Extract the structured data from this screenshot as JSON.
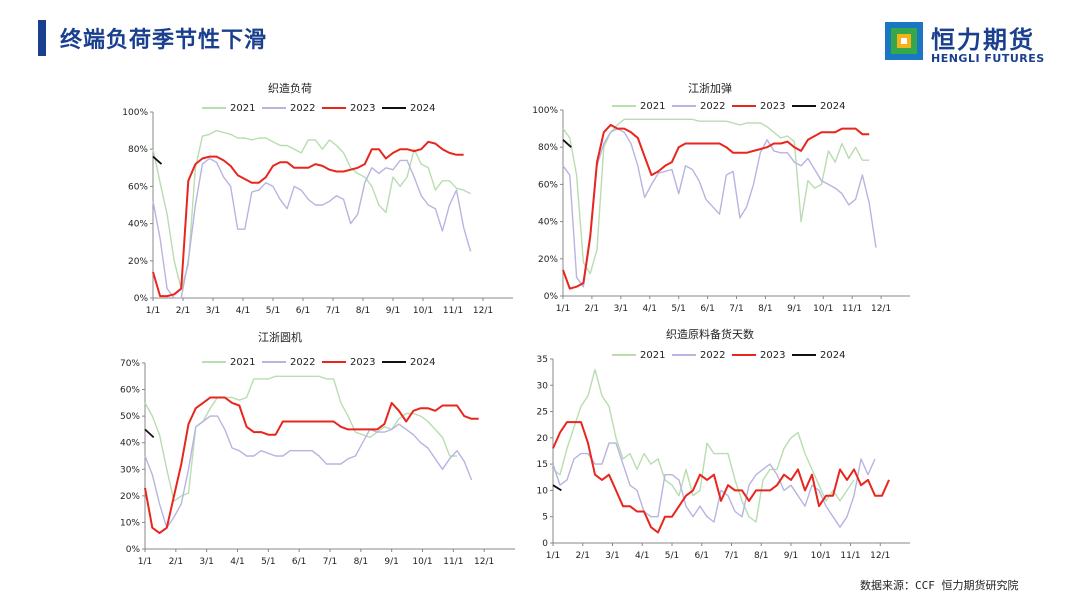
{
  "page": {
    "title": "终端负荷季节性下滑",
    "source": "数据来源：CCF  恒力期货研究院"
  },
  "logo": {
    "cn": "恒力期货",
    "en": "HENGLI FUTURES"
  },
  "colors": {
    "2021": "#b8ddb0",
    "2022": "#b8b4e0",
    "2023": "#e8261e",
    "2024": "#111111",
    "brand": "#1a3f8f"
  },
  "chart_data": [
    {
      "type": "line",
      "title": "织造负荷",
      "x_ticks": [
        "1/1",
        "2/1",
        "3/1",
        "4/1",
        "5/1",
        "6/1",
        "7/1",
        "8/1",
        "9/1",
        "10/1",
        "11/1",
        "12/1"
      ],
      "y_ticks": [
        "0%",
        "20%",
        "40%",
        "60%",
        "80%",
        "100%"
      ],
      "ylim": [
        0,
        100
      ],
      "legend": [
        "2021",
        "2022",
        "2023",
        "2024"
      ],
      "series": [
        {
          "name": "2021",
          "color": "#b8ddb0",
          "values": [
            80,
            62,
            45,
            20,
            5,
            18,
            70,
            87,
            88,
            90,
            89,
            88,
            86,
            86,
            85,
            86,
            86,
            84,
            82,
            82,
            80,
            78,
            85,
            85,
            80,
            85,
            82,
            78,
            70,
            67,
            65,
            60,
            50,
            46,
            65,
            60,
            65,
            80,
            72,
            70,
            58,
            63,
            63,
            59,
            58,
            56
          ]
        },
        {
          "name": "2022",
          "color": "#b8b4e0",
          "values": [
            52,
            32,
            5,
            0,
            0,
            20,
            50,
            72,
            75,
            73,
            65,
            60,
            37,
            37,
            57,
            58,
            62,
            60,
            53,
            48,
            60,
            58,
            53,
            50,
            50,
            52,
            55,
            53,
            40,
            45,
            62,
            70,
            67,
            70,
            69,
            74,
            74,
            65,
            55,
            50,
            48,
            36,
            50,
            58,
            38,
            25
          ]
        },
        {
          "name": "2023",
          "color": "#e8261e",
          "values": [
            14,
            1,
            1,
            2,
            5,
            63,
            72,
            75,
            76,
            76,
            74,
            71,
            66,
            64,
            62,
            62,
            65,
            71,
            73,
            73,
            70,
            70,
            70,
            72,
            71,
            69,
            68,
            68,
            69,
            70,
            72,
            80,
            80,
            75,
            78,
            80,
            80,
            79,
            80,
            84,
            83,
            80,
            78,
            77,
            77
          ]
        },
        {
          "name": "2024",
          "color": "#111111",
          "values": [
            76,
            72
          ]
        }
      ]
    },
    {
      "type": "line",
      "title": "江浙加弹",
      "x_ticks": [
        "1/1",
        "2/1",
        "3/1",
        "4/1",
        "5/1",
        "6/1",
        "7/1",
        "8/1",
        "9/1",
        "10/1",
        "11/1",
        "12/1"
      ],
      "y_ticks": [
        "0%",
        "20%",
        "40%",
        "60%",
        "80%",
        "100%"
      ],
      "ylim": [
        0,
        100
      ],
      "legend": [
        "2021",
        "2022",
        "2023",
        "2024"
      ],
      "series": [
        {
          "name": "2021",
          "color": "#b8ddb0",
          "values": [
            90,
            85,
            65,
            18,
            12,
            25,
            80,
            88,
            92,
            95,
            95,
            95,
            95,
            95,
            95,
            95,
            95,
            95,
            95,
            95,
            94,
            94,
            94,
            94,
            94,
            93,
            92,
            93,
            93,
            93,
            91,
            88,
            85,
            86,
            83,
            40,
            62,
            58,
            60,
            78,
            72,
            82,
            74,
            80,
            73,
            73
          ]
        },
        {
          "name": "2022",
          "color": "#b8b4e0",
          "values": [
            70,
            65,
            10,
            5,
            30,
            70,
            82,
            88,
            90,
            88,
            82,
            70,
            53,
            60,
            66,
            67,
            68,
            55,
            70,
            68,
            62,
            52,
            48,
            44,
            65,
            67,
            42,
            48,
            60,
            77,
            84,
            78,
            77,
            77,
            72,
            70,
            74,
            68,
            62,
            60,
            58,
            55,
            49,
            52,
            65,
            50,
            26
          ]
        },
        {
          "name": "2023",
          "color": "#e8261e",
          "values": [
            14,
            4,
            5,
            7,
            32,
            72,
            88,
            92,
            90,
            90,
            88,
            85,
            75,
            65,
            67,
            70,
            72,
            80,
            82,
            82,
            82,
            82,
            82,
            82,
            80,
            77,
            77,
            77,
            78,
            79,
            80,
            82,
            82,
            83,
            80,
            78,
            84,
            86,
            88,
            88,
            88,
            90,
            90,
            90,
            87,
            87
          ]
        },
        {
          "name": "2024",
          "color": "#111111",
          "values": [
            84,
            80
          ]
        }
      ]
    },
    {
      "type": "line",
      "title": "江浙圆机",
      "x_ticks": [
        "1/1",
        "2/1",
        "3/1",
        "4/1",
        "5/1",
        "6/1",
        "7/1",
        "8/1",
        "9/1",
        "10/1",
        "11/1",
        "12/1"
      ],
      "y_ticks": [
        "0%",
        "10%",
        "20%",
        "30%",
        "40%",
        "50%",
        "60%",
        "70%"
      ],
      "ylim": [
        0,
        70
      ],
      "legend": [
        "2021",
        "2022",
        "2023",
        "2024"
      ],
      "series": [
        {
          "name": "2021",
          "color": "#b8ddb0",
          "values": [
            55,
            50,
            43,
            30,
            18,
            20,
            21,
            46,
            48,
            53,
            57,
            57,
            57,
            56,
            57,
            64,
            64,
            64,
            65,
            65,
            65,
            65,
            65,
            65,
            65,
            64,
            64,
            55,
            50,
            44,
            43,
            42,
            44,
            46,
            45,
            49,
            51,
            51,
            50,
            48,
            45,
            42,
            35,
            35
          ]
        },
        {
          "name": "2022",
          "color": "#b8b4e0",
          "values": [
            35,
            28,
            17,
            8,
            12,
            17,
            30,
            46,
            48,
            50,
            50,
            45,
            38,
            37,
            35,
            35,
            37,
            36,
            35,
            35,
            37,
            37,
            37,
            37,
            35,
            32,
            32,
            32,
            34,
            35,
            40,
            45,
            44,
            44,
            45,
            47,
            45,
            43,
            40,
            38,
            34,
            30,
            34,
            37,
            33,
            26
          ]
        },
        {
          "name": "2023",
          "color": "#e8261e",
          "values": [
            23,
            8,
            6,
            8,
            20,
            32,
            47,
            53,
            55,
            57,
            57,
            57,
            55,
            54,
            46,
            44,
            44,
            43,
            43,
            48,
            48,
            48,
            48,
            48,
            48,
            48,
            48,
            46,
            45,
            45,
            45,
            45,
            45,
            47,
            55,
            52,
            48,
            52,
            53,
            53,
            52,
            54,
            54,
            54,
            50,
            49,
            49
          ]
        },
        {
          "name": "2024",
          "color": "#111111",
          "values": [
            45,
            42
          ]
        }
      ]
    },
    {
      "type": "line",
      "title": "织造原料备货天数",
      "x_ticks": [
        "1/1",
        "2/1",
        "3/1",
        "4/1",
        "5/1",
        "6/1",
        "7/1",
        "8/1",
        "9/1",
        "10/1",
        "11/1",
        "12/1"
      ],
      "y_ticks": [
        "0",
        "5",
        "10",
        "15",
        "20",
        "25",
        "30",
        "35"
      ],
      "ylim": [
        0,
        35
      ],
      "legend": [
        "2021",
        "2022",
        "2023",
        "2024"
      ],
      "series": [
        {
          "name": "2021",
          "color": "#b8ddb0",
          "values": [
            14,
            13,
            18,
            22,
            26,
            28,
            33,
            28,
            26,
            20,
            16,
            17,
            14,
            17,
            15,
            16,
            12,
            11,
            9,
            14,
            9,
            10,
            19,
            17,
            17,
            17,
            12,
            8,
            5,
            4,
            12,
            14,
            14,
            18,
            20,
            21,
            17,
            14,
            11,
            8,
            10,
            8,
            10,
            12
          ]
        },
        {
          "name": "2022",
          "color": "#b8b4e0",
          "values": [
            15,
            11,
            12,
            16,
            17,
            17,
            15,
            15,
            19,
            19,
            15,
            11,
            10,
            6,
            5,
            5,
            13,
            13,
            12,
            7,
            5,
            7,
            5,
            4,
            10,
            9,
            6,
            5,
            11,
            13,
            14,
            15,
            13,
            10,
            11,
            9,
            7,
            11,
            10,
            7,
            5,
            3,
            5,
            9,
            16,
            13,
            16
          ]
        },
        {
          "name": "2023",
          "color": "#e8261e",
          "values": [
            18,
            21,
            23,
            23,
            23,
            19,
            13,
            12,
            13,
            10,
            7,
            7,
            6,
            6,
            3,
            2,
            5,
            5,
            7,
            9,
            10,
            13,
            12,
            13,
            8,
            11,
            10,
            10,
            8,
            10,
            10,
            10,
            11,
            13,
            12,
            14,
            10,
            13,
            7,
            9,
            9,
            14,
            12,
            14,
            11,
            12,
            9,
            9,
            12
          ]
        },
        {
          "name": "2024",
          "color": "#111111",
          "values": [
            11,
            10
          ]
        }
      ]
    }
  ]
}
